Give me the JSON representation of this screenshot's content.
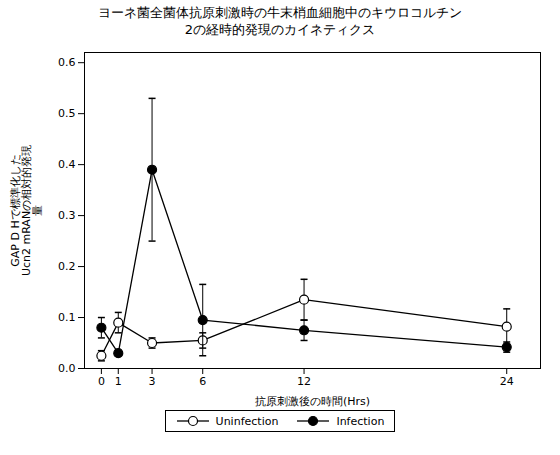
{
  "chart_data": {
    "type": "line",
    "title": "ヨーネ菌全菌体抗原刺激時の牛末梢血細胞中のキウロコルチン\n2の経時的発現のカイネティクス",
    "xlabel": "抗原刺激後の時間(Hrs)",
    "ylabel": "GAP D Hで標準化した\nUcn2 mRANの相対的発現\n量",
    "x": [
      0,
      1,
      3,
      6,
      12,
      24
    ],
    "series": [
      {
        "name": "Uninfection",
        "color": "black",
        "marker": "circle_open",
        "line_style": "solid",
        "values": [
          0.025,
          0.09,
          0.05,
          0.055,
          0.135,
          0.082
        ],
        "errors": [
          0.01,
          0.02,
          0.01,
          0.015,
          0.04,
          0.035
        ]
      },
      {
        "name": "Infection",
        "color": "black",
        "marker": "circle",
        "line_style": "solid",
        "values": [
          0.08,
          0.03,
          0.39,
          0.095,
          0.075,
          0.042
        ],
        "errors": [
          0.02,
          0.005,
          0.14,
          0.07,
          0.02,
          0.01
        ]
      }
    ],
    "xlim": [
      -1,
      26
    ],
    "xticks": [
      0,
      1,
      3,
      6,
      12,
      24
    ],
    "ylim": [
      0.0,
      0.62
    ],
    "yticks": [
      {
        "value": 0.0,
        "label": "0.0"
      },
      0.1,
      0.2,
      0.3,
      0.4,
      0.5,
      0.6
    ],
    "grid": false,
    "legend": "bottom"
  }
}
